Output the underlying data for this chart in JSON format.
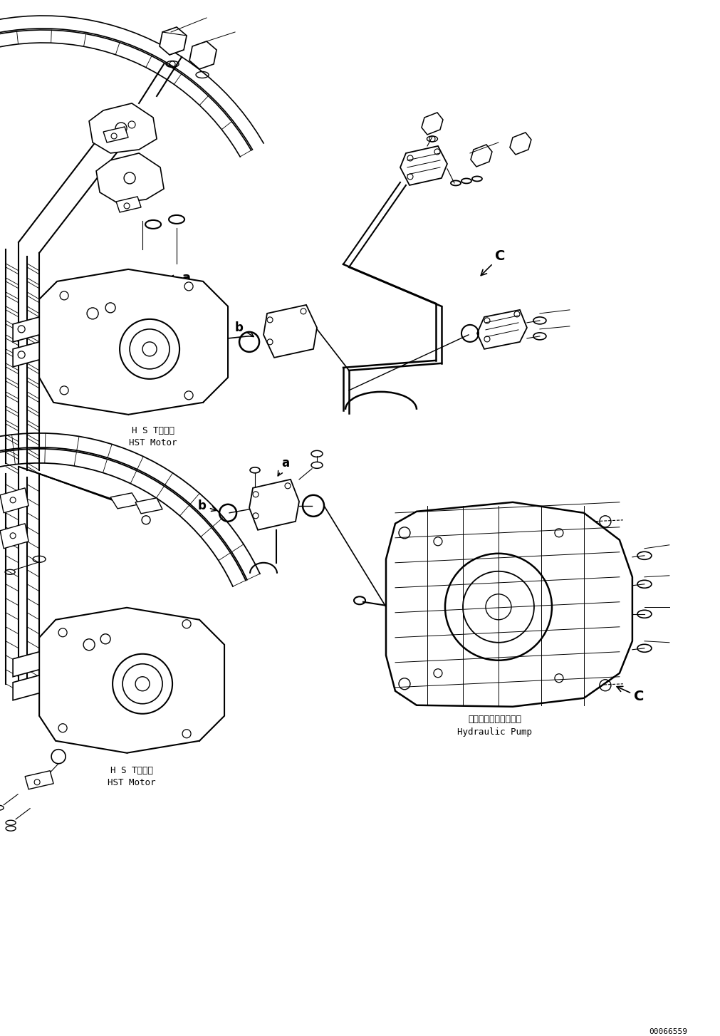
{
  "background_color": "#ffffff",
  "line_color": "#000000",
  "part_id": "00066559",
  "labels": {
    "hst_motor_japanese_1": "H S Tモータ",
    "hst_motor_english_1": "HST Motor",
    "hst_motor_japanese_2": "H S Tモータ",
    "hst_motor_english_2": "HST Motor",
    "hydraulic_pump_japanese": "ハイドロリックポンプ",
    "hydraulic_pump_english": "Hydraulic Pump"
  },
  "figsize": [
    10.12,
    14.54
  ],
  "dpi": 100
}
